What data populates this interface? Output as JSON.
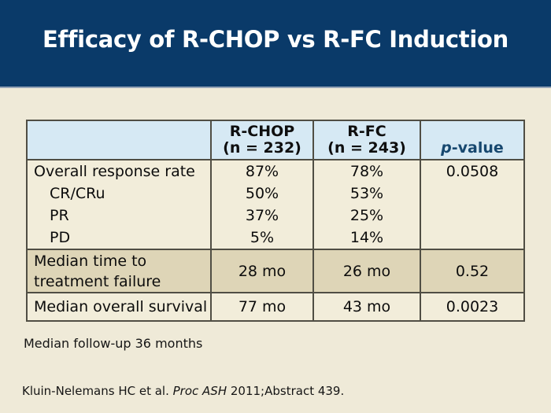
{
  "slide": {
    "title": "Efficacy of R-CHOP vs R-FC Induction",
    "footnote": "Median follow-up 36 months",
    "citation": {
      "part1": "Kluin-Nelemans HC et al. ",
      "part2_italic": "Proc ASH",
      "part3": " 2011;Abstract 439."
    }
  },
  "colors": {
    "band_navy": "#0a3a69",
    "band_divider": "#94a3b6",
    "page_beige": "#efead8",
    "header_blue": "#d6e9f4",
    "row_cream": "#f2edda",
    "row_tan": "#ded5b7",
    "table_border": "#504e44",
    "p_value_blue": "#17486f",
    "title_text": "#ffffff"
  },
  "table": {
    "header": {
      "col1": "",
      "col2_line1": "R-CHOP",
      "col2_line2": "(n = 232)",
      "col3_line1": "R-FC",
      "col3_line2": "(n = 243)",
      "col4_italic": "p",
      "col4_rest": "-value"
    },
    "rows": [
      {
        "label": "Overall response rate",
        "rchop": "87%",
        "rfc": "78%",
        "pvalue": "0.0508"
      },
      {
        "label": "CR/CRu",
        "rchop": "50%",
        "rfc": "53%",
        "pvalue": ""
      },
      {
        "label": "PR",
        "rchop": "37%",
        "rfc": "25%",
        "pvalue": ""
      },
      {
        "label": "PD",
        "rchop": "5%",
        "rfc": "14%",
        "pvalue": ""
      },
      {
        "label": "Median time to treatment failure",
        "rchop": "28 mo",
        "rfc": "26 mo",
        "pvalue": "0.52"
      },
      {
        "label": "Median overall survival",
        "rchop": "77 mo",
        "rfc": "43 mo",
        "pvalue": "0.0023"
      }
    ]
  },
  "chart_data": {
    "type": "table",
    "title": "Efficacy of R-CHOP vs R-FC Induction",
    "columns": [
      "",
      "R-CHOP (n = 232)",
      "R-FC (n = 243)",
      "p-value"
    ],
    "rows": [
      [
        "Overall response rate",
        "87%",
        "78%",
        "0.0508"
      ],
      [
        "CR/CRu",
        "50%",
        "53%",
        ""
      ],
      [
        "PR",
        "37%",
        "25%",
        ""
      ],
      [
        "PD",
        "5%",
        "14%",
        ""
      ],
      [
        "Median time to treatment failure",
        "28 mo",
        "26 mo",
        "0.52"
      ],
      [
        "Median overall survival",
        "77 mo",
        "43 mo",
        "0.0023"
      ]
    ]
  }
}
